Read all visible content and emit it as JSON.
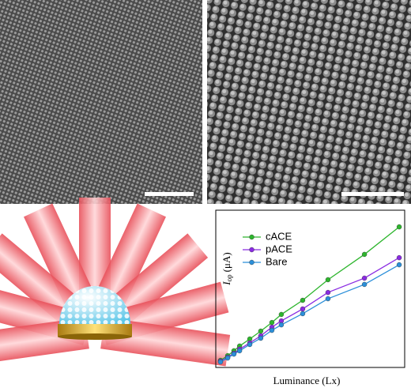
{
  "chart_data": {
    "type": "line",
    "x_label": "Luminance (Lx)",
    "y_label": {
      "symbol": "I",
      "subscript": "op",
      "unit": "(μA)"
    },
    "x": [
      2.5,
      6.3,
      9.6,
      12.6,
      18.0,
      23.8,
      29.7,
      34.7,
      46.0,
      59.4,
      78.7,
      97.1
    ],
    "xlim": [
      0,
      100
    ],
    "ylim": [
      0,
      100
    ],
    "series": [
      {
        "name": "cACE",
        "color": "#2db52d",
        "values": [
          4.5,
          7.5,
          10.6,
          13.6,
          18.1,
          23.1,
          28.6,
          33.7,
          42.7,
          55.8,
          71.9,
          89.4
        ]
      },
      {
        "name": "pACE",
        "color": "#8a2be2",
        "values": [
          4.0,
          6.5,
          9.0,
          11.6,
          15.6,
          20.1,
          25.6,
          29.6,
          37.2,
          47.7,
          56.8,
          69.8
        ]
      },
      {
        "name": "Bare",
        "color": "#2b8fd9",
        "values": [
          3.5,
          6.0,
          8.5,
          10.6,
          14.6,
          18.6,
          23.6,
          27.1,
          34.2,
          43.7,
          52.8,
          65.3
        ]
      }
    ]
  }
}
